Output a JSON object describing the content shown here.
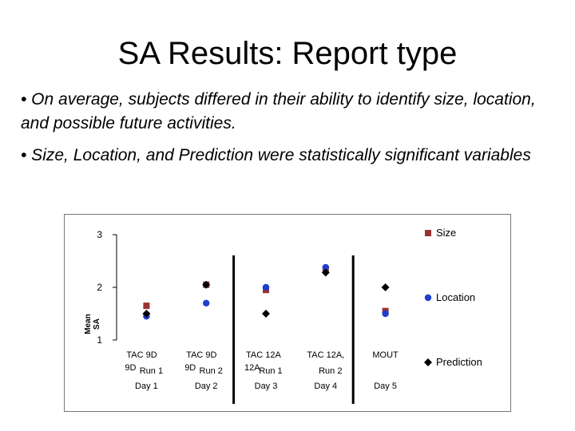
{
  "slide": {
    "title": "SA Results: Report type",
    "bullets": [
      "• On average, subjects differed in their ability to identify size, location, and possible future activities.",
      "• Size, Location, and Prediction were statistically significant variables"
    ]
  },
  "chart_data": {
    "type": "scatter",
    "ylabel": "Mean SA",
    "ylim": [
      1,
      3
    ],
    "yticks": [
      1,
      2,
      3
    ],
    "grid": false,
    "legend": "right",
    "x_labels": [
      {
        "line1": "TAC 9D",
        "line2": "9D",
        "line3": "Run 1"
      },
      {
        "line1": "TAC 9D",
        "line2": "9D",
        "line3": "Run 2"
      },
      {
        "line1": "TAC 12A",
        "line2": "12A",
        "line3": "Run 1"
      },
      {
        "line1": "TAC 12A,",
        "line2": "",
        "line3": "Run 2"
      },
      {
        "line1": "MOUT",
        "line2": "",
        "line3": ""
      }
    ],
    "day_labels": [
      "Day 1",
      "Day 2",
      "Day 3",
      "Day 4",
      "Day 5"
    ],
    "separators_after": [
      2,
      4
    ],
    "series": [
      {
        "name": "Size",
        "marker": "square",
        "color": "#993333",
        "values": [
          1.65,
          2.05,
          1.95,
          2.35,
          1.55
        ]
      },
      {
        "name": "Location",
        "marker": "circle",
        "color": "#1f3fcc",
        "values": [
          1.45,
          1.7,
          2.0,
          2.38,
          1.5
        ]
      },
      {
        "name": "Prediction",
        "marker": "diamond",
        "color": "#000000",
        "values": [
          1.5,
          2.05,
          1.5,
          2.28,
          2.0
        ]
      }
    ]
  }
}
